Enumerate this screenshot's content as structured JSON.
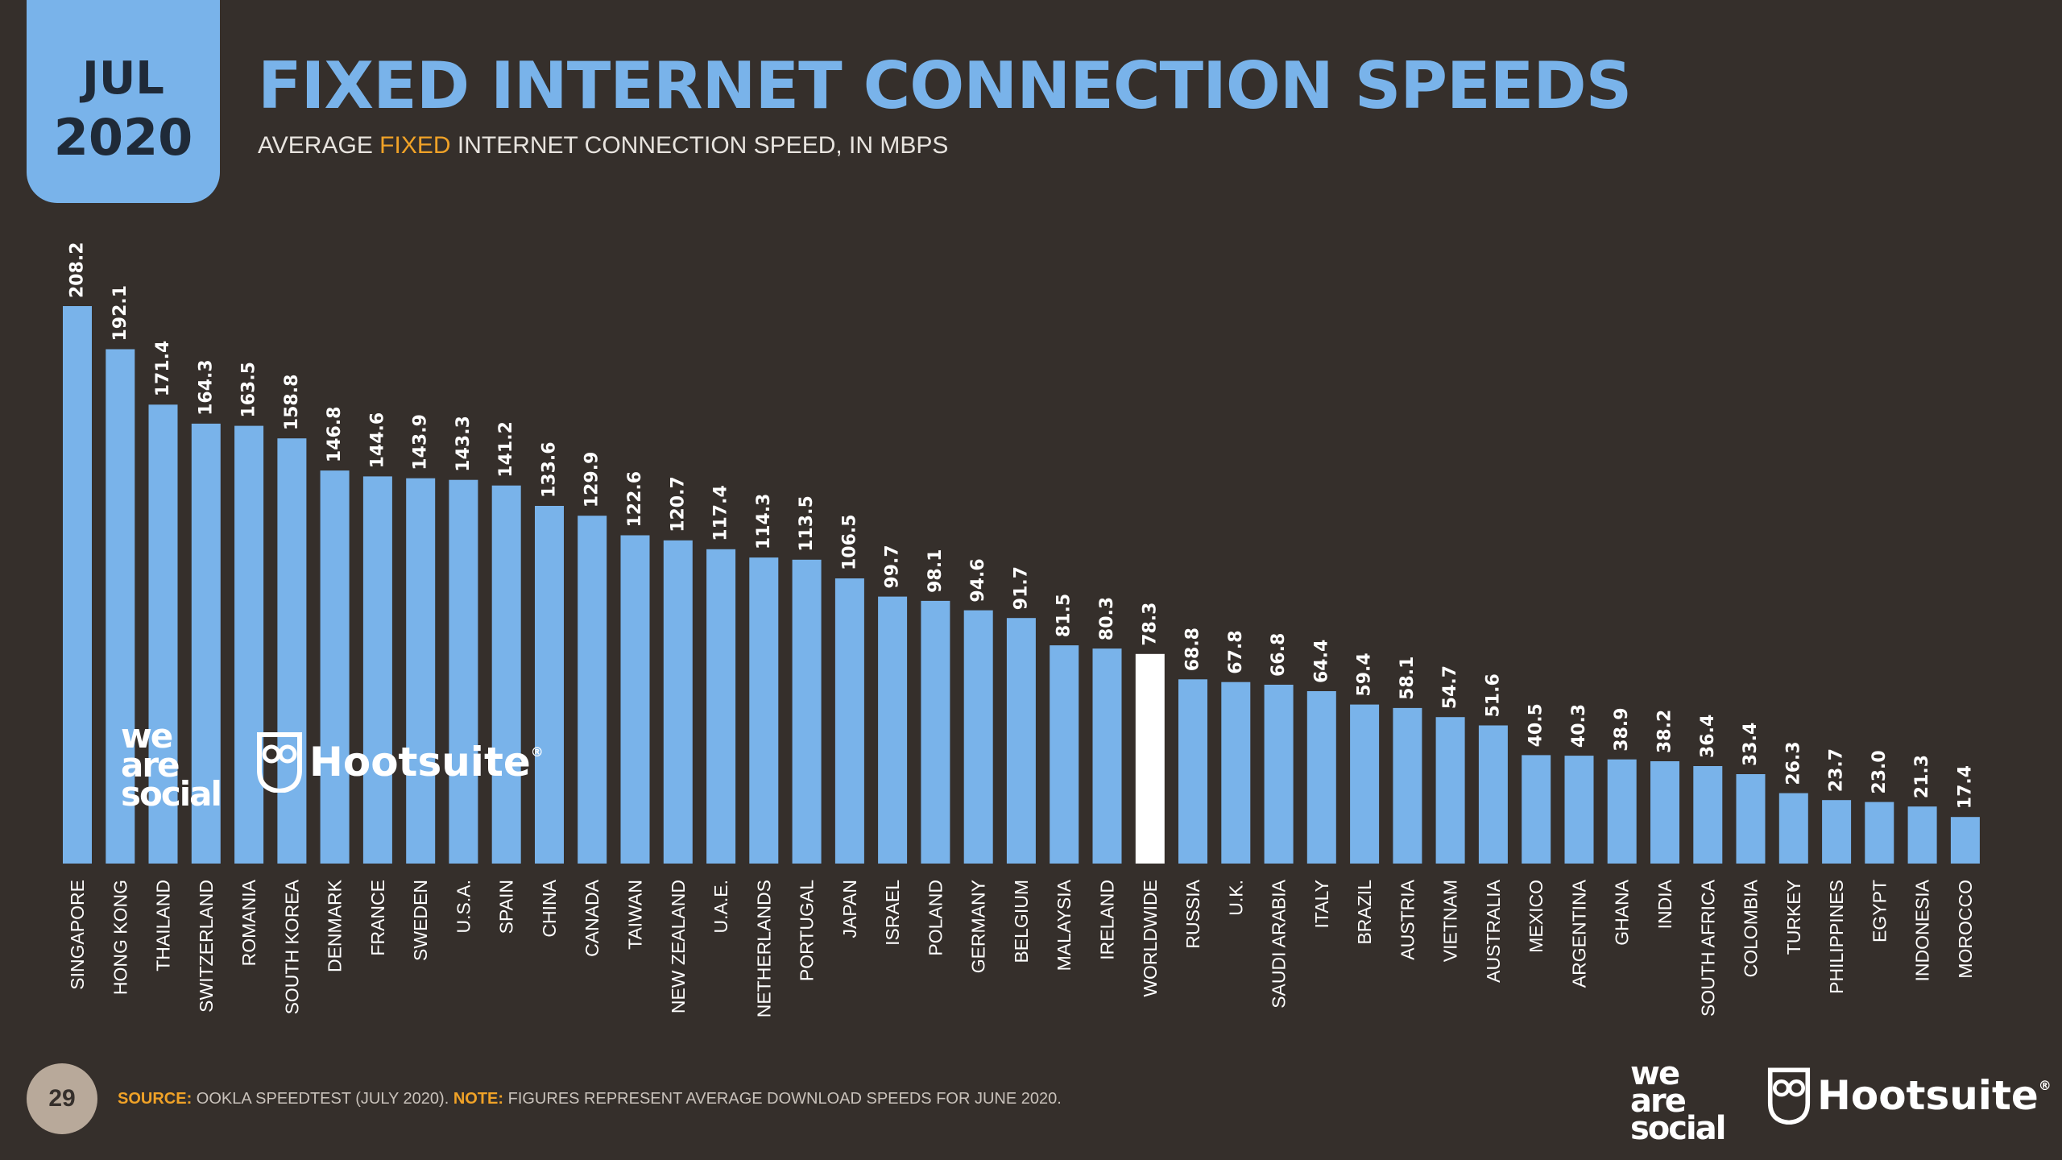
{
  "header": {
    "month": "JUL",
    "year": "2020",
    "title": "FIXED INTERNET CONNECTION SPEEDS",
    "subtitle_pre": "AVERAGE ",
    "subtitle_hl": "FIXED",
    "subtitle_post": " INTERNET CONNECTION SPEED, IN MBPS"
  },
  "brand": {
    "was_line1": "we",
    "was_line2": "are",
    "was_line3": "social",
    "hootsuite": "Hootsuite",
    "hootsuite_mark": "®"
  },
  "footer": {
    "page_number": "29",
    "source_label": "SOURCE:",
    "source_text": " OOKLA SPEEDTEST (JULY 2020). ",
    "note_label": "NOTE:",
    "note_text": " FIGURES REPRESENT AVERAGE DOWNLOAD SPEEDS FOR JUNE 2020."
  },
  "colors": {
    "background": "#352f2b",
    "bar": "#79b3ea",
    "highlight_bar": "#ffffff",
    "accent": "#f0a227",
    "text": "#ffffff"
  },
  "chart_data": {
    "type": "bar",
    "orientation": "vertical",
    "title": "",
    "xlabel": "",
    "ylabel": "",
    "ylim": [
      0,
      208.2
    ],
    "grid": false,
    "highlight_category": "WORLDWIDE",
    "categories": [
      "SINGAPORE",
      "HONG KONG",
      "THAILAND",
      "SWITZERLAND",
      "ROMANIA",
      "SOUTH KOREA",
      "DENMARK",
      "FRANCE",
      "SWEDEN",
      "U.S.A.",
      "SPAIN",
      "CHINA",
      "CANADA",
      "TAIWAN",
      "NEW ZEALAND",
      "U.A.E.",
      "NETHERLANDS",
      "PORTUGAL",
      "JAPAN",
      "ISRAEL",
      "POLAND",
      "GERMANY",
      "BELGIUM",
      "MALAYSIA",
      "IRELAND",
      "WORLDWIDE",
      "RUSSIA",
      "U.K.",
      "SAUDI ARABIA",
      "ITALY",
      "BRAZIL",
      "AUSTRIA",
      "VIETNAM",
      "AUSTRALIA",
      "MEXICO",
      "ARGENTINA",
      "GHANA",
      "INDIA",
      "SOUTH AFRICA",
      "COLOMBIA",
      "TURKEY",
      "PHILIPPINES",
      "EGYPT",
      "INDONESIA",
      "MOROCCO"
    ],
    "values": [
      208.2,
      192.1,
      171.4,
      164.3,
      163.5,
      158.8,
      146.8,
      144.6,
      143.9,
      143.3,
      141.2,
      133.6,
      129.9,
      122.6,
      120.7,
      117.4,
      114.3,
      113.5,
      106.5,
      99.7,
      98.1,
      94.6,
      91.7,
      81.5,
      80.3,
      78.3,
      68.8,
      67.8,
      66.8,
      64.4,
      59.4,
      58.1,
      54.7,
      51.6,
      40.5,
      40.3,
      38.9,
      38.2,
      36.4,
      33.4,
      26.3,
      23.7,
      23.0,
      21.3,
      17.4
    ],
    "labels": [
      "208.2",
      "192.1",
      "171.4",
      "164.3",
      "163.5",
      "158.8",
      "146.8",
      "144.6",
      "143.9",
      "143.3",
      "141.2",
      "133.6",
      "129.9",
      "122.6",
      "120.7",
      "117.4",
      "114.3",
      "113.5",
      "106.5",
      "99.7",
      "98.1",
      "94.6",
      "91.7",
      "81.5",
      "80.3",
      "78.3",
      "68.8",
      "67.8",
      "66.8",
      "64.4",
      "59.4",
      "58.1",
      "54.7",
      "51.6",
      "40.5",
      "40.3",
      "38.9",
      "38.2",
      "36.4",
      "33.4",
      "26.3",
      "23.7",
      "23.0",
      "21.3",
      "17.4"
    ]
  }
}
